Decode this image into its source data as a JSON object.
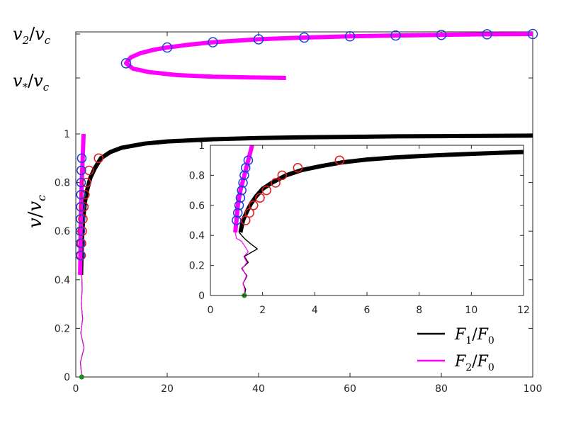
{
  "chart_data": [
    {
      "type": "line",
      "role": "main",
      "xlim": [
        0,
        100
      ],
      "ylim": [
        0,
        1
      ],
      "xticks": [
        "0",
        "20",
        "40",
        "60",
        "80",
        "100"
      ],
      "yticks": [
        "0",
        "0.2",
        "0.4",
        "0.6",
        "0.8",
        "1"
      ],
      "ylabel": "v/v_c",
      "extra_ylabels": [
        "v_2/v_c",
        "v_*/v_c"
      ],
      "legend_position": "bottom-right",
      "grid": false,
      "series": [
        {
          "name": "F_1/F_0",
          "color": "#000000",
          "x": [
            1.15,
            1.3,
            1.6,
            2.0,
            2.5,
            3.2,
            4.2,
            5.5,
            7.5,
            10,
            15,
            20,
            30,
            40,
            50,
            60,
            70,
            80,
            90,
            100
          ],
          "y": [
            0.42,
            0.55,
            0.65,
            0.72,
            0.77,
            0.82,
            0.86,
            0.9,
            0.925,
            0.943,
            0.96,
            0.969,
            0.978,
            0.983,
            0.986,
            0.988,
            0.99,
            0.991,
            0.992,
            0.993
          ],
          "markers_x": [
            1.15,
            1.25,
            1.4,
            1.55,
            1.75,
            2.0,
            2.35,
            2.9,
            5.0
          ],
          "markers_y": [
            0.5,
            0.55,
            0.6,
            0.65,
            0.7,
            0.75,
            0.8,
            0.85,
            0.9
          ]
        },
        {
          "name": "F_2/F_0",
          "color": "#ff00ff",
          "x": [
            0.95,
            1.0,
            1.05,
            1.15,
            1.3,
            1.5,
            1.7
          ],
          "y": [
            0.42,
            0.5,
            0.6,
            0.7,
            0.8,
            0.9,
            1.0
          ],
          "markers_x": [
            0.98,
            1.0,
            1.02,
            1.05,
            1.08,
            1.12,
            1.16,
            1.2,
            1.3
          ],
          "markers_y": [
            0.5,
            0.55,
            0.6,
            0.65,
            0.7,
            0.75,
            0.8,
            0.85,
            0.9
          ]
        }
      ],
      "low_velocity_noise": {
        "x": [
          1.3,
          1.0,
          1.8,
          1.1,
          1.5,
          1.2,
          1.4,
          1.3
        ],
        "y": [
          0.0,
          0.06,
          0.12,
          0.18,
          0.24,
          0.3,
          0.36,
          0.42
        ]
      },
      "upper_branch": {
        "color": "#ff00ff",
        "x": [
          46,
          38,
          30,
          22,
          16,
          12.5,
          11,
          12,
          14,
          17,
          20,
          25,
          30,
          40,
          50,
          60,
          70,
          80,
          90,
          100
        ],
        "y": [
          0.2,
          0.21,
          0.22,
          0.25,
          0.3,
          0.36,
          0.45,
          0.55,
          0.62,
          0.68,
          0.72,
          0.77,
          0.81,
          0.86,
          0.89,
          0.91,
          0.925,
          0.935,
          0.945,
          0.95
        ],
        "markers_x": [
          11,
          20,
          30,
          40,
          50,
          60,
          70,
          80,
          90,
          100
        ],
        "markers_y": [
          0.45,
          0.72,
          0.81,
          0.86,
          0.89,
          0.91,
          0.925,
          0.935,
          0.945,
          0.95
        ]
      },
      "start_point": {
        "x": 1.3,
        "y": 0.0,
        "color": "#1a8c1a"
      }
    },
    {
      "type": "line",
      "role": "inset",
      "xlim": [
        0,
        12
      ],
      "ylim": [
        0,
        1
      ],
      "xticks": [
        "0",
        "2",
        "4",
        "6",
        "8",
        "10",
        "12"
      ],
      "yticks": [
        "0",
        "0.2",
        "0.4",
        "0.6",
        "0.8",
        "1"
      ],
      "series": [
        {
          "name": "F_1/F_0",
          "color": "#000000",
          "x": [
            1.15,
            1.25,
            1.4,
            1.55,
            1.75,
            2.0,
            2.35,
            2.9,
            3.5,
            4.2,
            5.0,
            6,
            7,
            8,
            9,
            10,
            11,
            12
          ],
          "y": [
            0.42,
            0.5,
            0.56,
            0.61,
            0.66,
            0.71,
            0.75,
            0.8,
            0.835,
            0.86,
            0.885,
            0.905,
            0.918,
            0.928,
            0.936,
            0.943,
            0.949,
            0.955
          ],
          "markers_x": [
            1.35,
            1.5,
            1.65,
            1.9,
            2.15,
            2.5,
            2.75,
            3.35,
            4.95
          ],
          "markers_y": [
            0.5,
            0.55,
            0.6,
            0.65,
            0.7,
            0.75,
            0.8,
            0.85,
            0.9
          ]
        },
        {
          "name": "F_2/F_0",
          "color": "#ff00ff",
          "x": [
            0.95,
            1.0,
            1.05,
            1.15,
            1.3,
            1.45,
            1.6
          ],
          "y": [
            0.42,
            0.5,
            0.6,
            0.7,
            0.8,
            0.9,
            1.0
          ],
          "markers_x": [
            1.0,
            1.05,
            1.1,
            1.15,
            1.2,
            1.25,
            1.3,
            1.35,
            1.45
          ],
          "markers_y": [
            0.5,
            0.55,
            0.6,
            0.65,
            0.7,
            0.75,
            0.8,
            0.85,
            0.9
          ]
        }
      ],
      "low_velocity_noise_black": {
        "x": [
          1.3,
          1.35,
          1.25,
          1.4,
          1.2,
          1.45,
          1.3,
          1.6,
          1.8,
          1.5,
          1.3,
          1.1
        ],
        "y": [
          0.0,
          0.04,
          0.08,
          0.13,
          0.18,
          0.22,
          0.26,
          0.29,
          0.31,
          0.35,
          0.38,
          0.42
        ]
      },
      "low_velocity_noise_magenta": {
        "x": [
          1.3,
          1.32,
          1.25,
          1.38,
          1.22,
          1.4,
          1.28,
          1.45,
          1.35,
          1.2,
          1.0,
          0.95
        ],
        "y": [
          0.0,
          0.04,
          0.08,
          0.13,
          0.18,
          0.22,
          0.26,
          0.29,
          0.32,
          0.36,
          0.38,
          0.42
        ]
      },
      "start_point": {
        "x": 1.3,
        "y": 0.0,
        "color": "#1a8c1a"
      }
    }
  ]
}
